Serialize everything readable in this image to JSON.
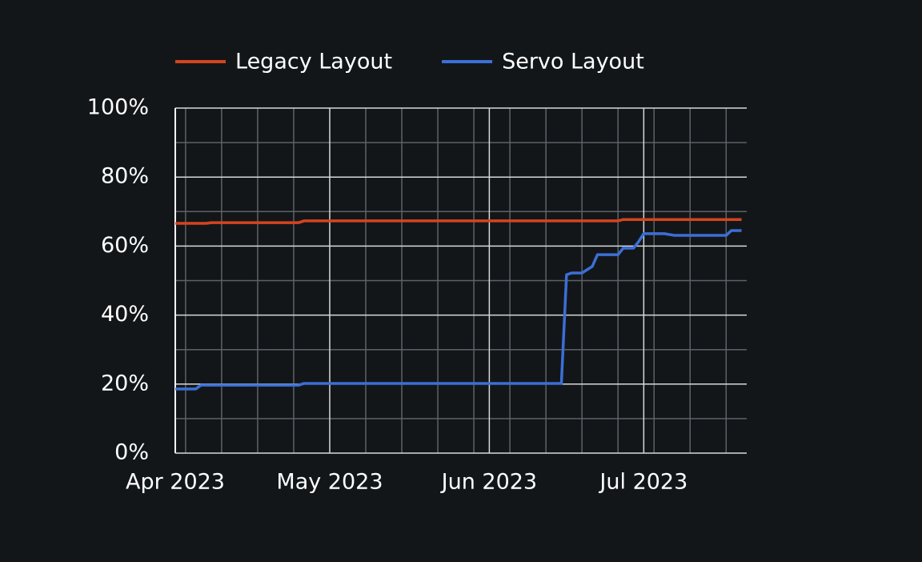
{
  "chart_data": {
    "type": "line",
    "x": [
      0,
      4,
      5,
      6,
      7,
      24,
      25,
      75,
      76,
      77,
      79,
      81,
      82,
      86,
      87,
      89,
      90,
      91,
      95,
      97,
      107,
      108,
      110
    ],
    "series": [
      {
        "name": "Legacy Layout",
        "color": "#d5441f",
        "values": [
          66.6,
          66.6,
          66.6,
          66.6,
          66.8,
          66.8,
          67.3,
          67.3,
          67.3,
          67.3,
          67.3,
          67.3,
          67.3,
          67.3,
          67.7,
          67.7,
          67.7,
          67.7,
          67.7,
          67.7,
          67.7,
          67.7,
          67.7
        ]
      },
      {
        "name": "Servo Layout",
        "color": "#3b6fd6",
        "values": [
          18.6,
          18.6,
          19.7,
          19.7,
          19.7,
          19.7,
          20.2,
          20.2,
          51.7,
          52.2,
          52.2,
          54.1,
          57.5,
          57.5,
          59.4,
          59.4,
          61.3,
          63.6,
          63.6,
          63.1,
          63.1,
          64.5,
          64.5
        ]
      }
    ],
    "xlim": [
      0,
      111
    ],
    "xticks": [
      {
        "value": 0,
        "label": "Apr 2023"
      },
      {
        "value": 30,
        "label": "May 2023"
      },
      {
        "value": 61,
        "label": "Jun 2023"
      },
      {
        "value": 91,
        "label": "Jul 2023"
      }
    ],
    "xminorticks": [
      2,
      9,
      16,
      23,
      37,
      44,
      51,
      58,
      65,
      72,
      79,
      86,
      93,
      100,
      107
    ],
    "ylim": [
      0,
      100
    ],
    "yticks": [
      {
        "value": 0,
        "label": "0%"
      },
      {
        "value": 20,
        "label": "20%"
      },
      {
        "value": 40,
        "label": "40%"
      },
      {
        "value": 60,
        "label": "60%"
      },
      {
        "value": 80,
        "label": "80%"
      },
      {
        "value": 100,
        "label": "100%"
      }
    ],
    "yminorticks": [
      10,
      30,
      50,
      70,
      90
    ],
    "grid": true,
    "legend": "top"
  }
}
